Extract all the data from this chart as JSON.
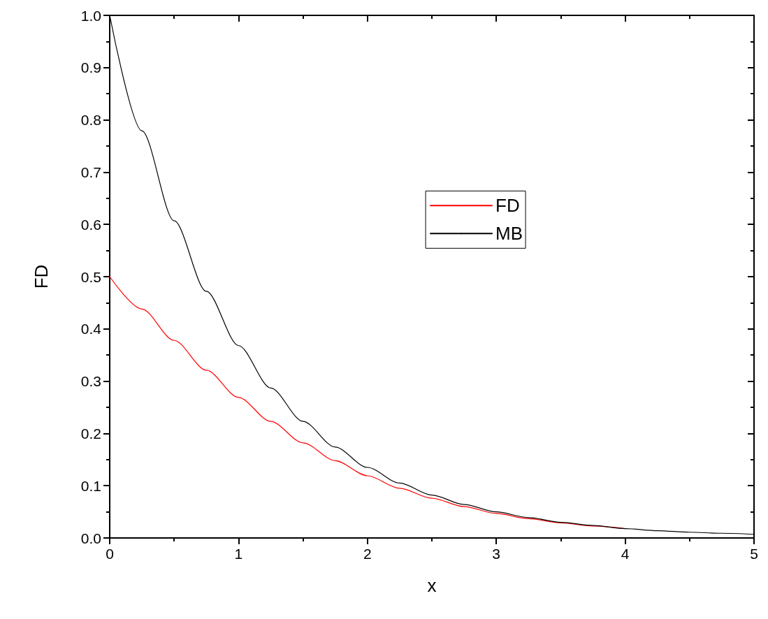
{
  "chart_data": {
    "type": "line",
    "xlabel": "x",
    "ylabel": "FD",
    "x": [
      0,
      0.25,
      0.5,
      0.75,
      1,
      1.25,
      1.5,
      1.75,
      2,
      2.25,
      2.5,
      2.75,
      3,
      3.25,
      3.5,
      3.75,
      4,
      4.25,
      4.5,
      4.75,
      5
    ],
    "series": [
      {
        "name": "FD",
        "color": "#ff0000",
        "values": [
          0.5,
          0.438,
          0.378,
          0.321,
          0.269,
          0.223,
          0.182,
          0.148,
          0.119,
          0.095,
          0.076,
          0.06,
          0.047,
          0.037,
          0.029,
          0.023,
          0.018,
          null,
          null,
          null,
          null
        ]
      },
      {
        "name": "MB",
        "color": "#000000",
        "values": [
          1,
          0.779,
          0.607,
          0.472,
          0.368,
          0.287,
          0.223,
          0.174,
          0.135,
          0.105,
          0.082,
          0.064,
          0.05,
          0.039,
          0.03,
          0.024,
          0.018,
          0.014,
          0.011,
          0.009,
          0.007
        ]
      }
    ],
    "xlim": [
      0,
      5
    ],
    "xticks": [
      0,
      1,
      2,
      3,
      4,
      5
    ],
    "ylim": [
      0,
      1
    ],
    "yticks": [
      {
        "value": 0,
        "label": "0.0"
      },
      {
        "value": 0.1,
        "label": "0.1"
      },
      {
        "value": 0.2,
        "label": "0.2"
      },
      {
        "value": 0.3,
        "label": "0.3"
      },
      {
        "value": 0.4,
        "label": "0.4"
      },
      {
        "value": 0.5,
        "label": "0.5"
      },
      {
        "value": 0.6,
        "label": "0.6"
      },
      {
        "value": 0.7,
        "label": "0.7"
      },
      {
        "value": 0.8,
        "label": "0.8"
      },
      {
        "value": 0.9,
        "label": "0.9"
      },
      {
        "value": 1,
        "label": "1.0"
      }
    ],
    "grid": false,
    "legend": "right",
    "marker": "none",
    "line_style": "solid"
  }
}
